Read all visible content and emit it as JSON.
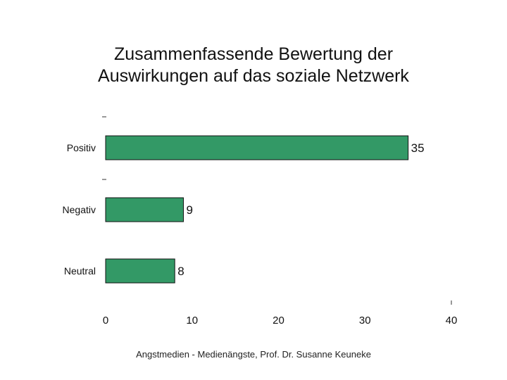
{
  "chart_data": {
    "type": "bar",
    "orientation": "horizontal",
    "title": "Zusammenfassende Bewertung der\nAuswirkungen auf das soziale Netzwerk",
    "categories": [
      "Positiv",
      "Negativ",
      "Neutral"
    ],
    "values": [
      35,
      9,
      8
    ],
    "xlim": [
      0,
      40
    ],
    "xticks": [
      0,
      10,
      20,
      30,
      40
    ],
    "grid": false,
    "bar_color": "#339966"
  },
  "footer": "Angstmedien - Medienängste, Prof. Dr. Susanne Keuneke"
}
